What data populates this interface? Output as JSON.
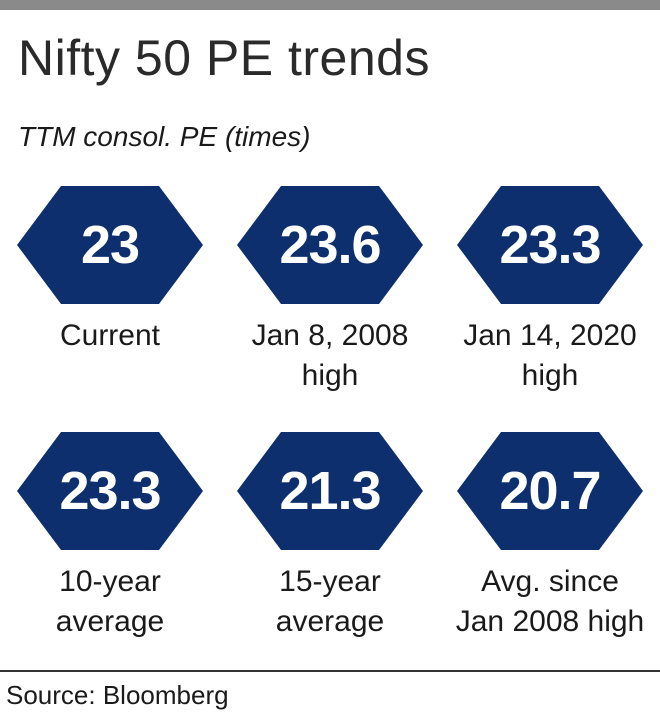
{
  "header": {
    "title": "Nifty 50 PE trends",
    "subtitle": "TTM consol. PE (times)"
  },
  "chart_data": {
    "type": "table",
    "title": "Nifty 50 PE trends",
    "subtitle": "TTM consol. PE (times)",
    "items": [
      {
        "value": "23",
        "label_lines": [
          "Current"
        ]
      },
      {
        "value": "23.6",
        "label_lines": [
          "Jan 8, 2008",
          "high"
        ]
      },
      {
        "value": "23.3",
        "label_lines": [
          "Jan 14, 2020",
          "high"
        ]
      },
      {
        "value": "23.3",
        "label_lines": [
          "10-year",
          "average"
        ]
      },
      {
        "value": "21.3",
        "label_lines": [
          "15-year",
          "average"
        ]
      },
      {
        "value": "20.7",
        "label_lines": [
          "Avg. since",
          "Jan 2008 high"
        ]
      }
    ],
    "hex_color": "#0d2f6e"
  },
  "footer": {
    "source": "Source: Bloomberg"
  }
}
